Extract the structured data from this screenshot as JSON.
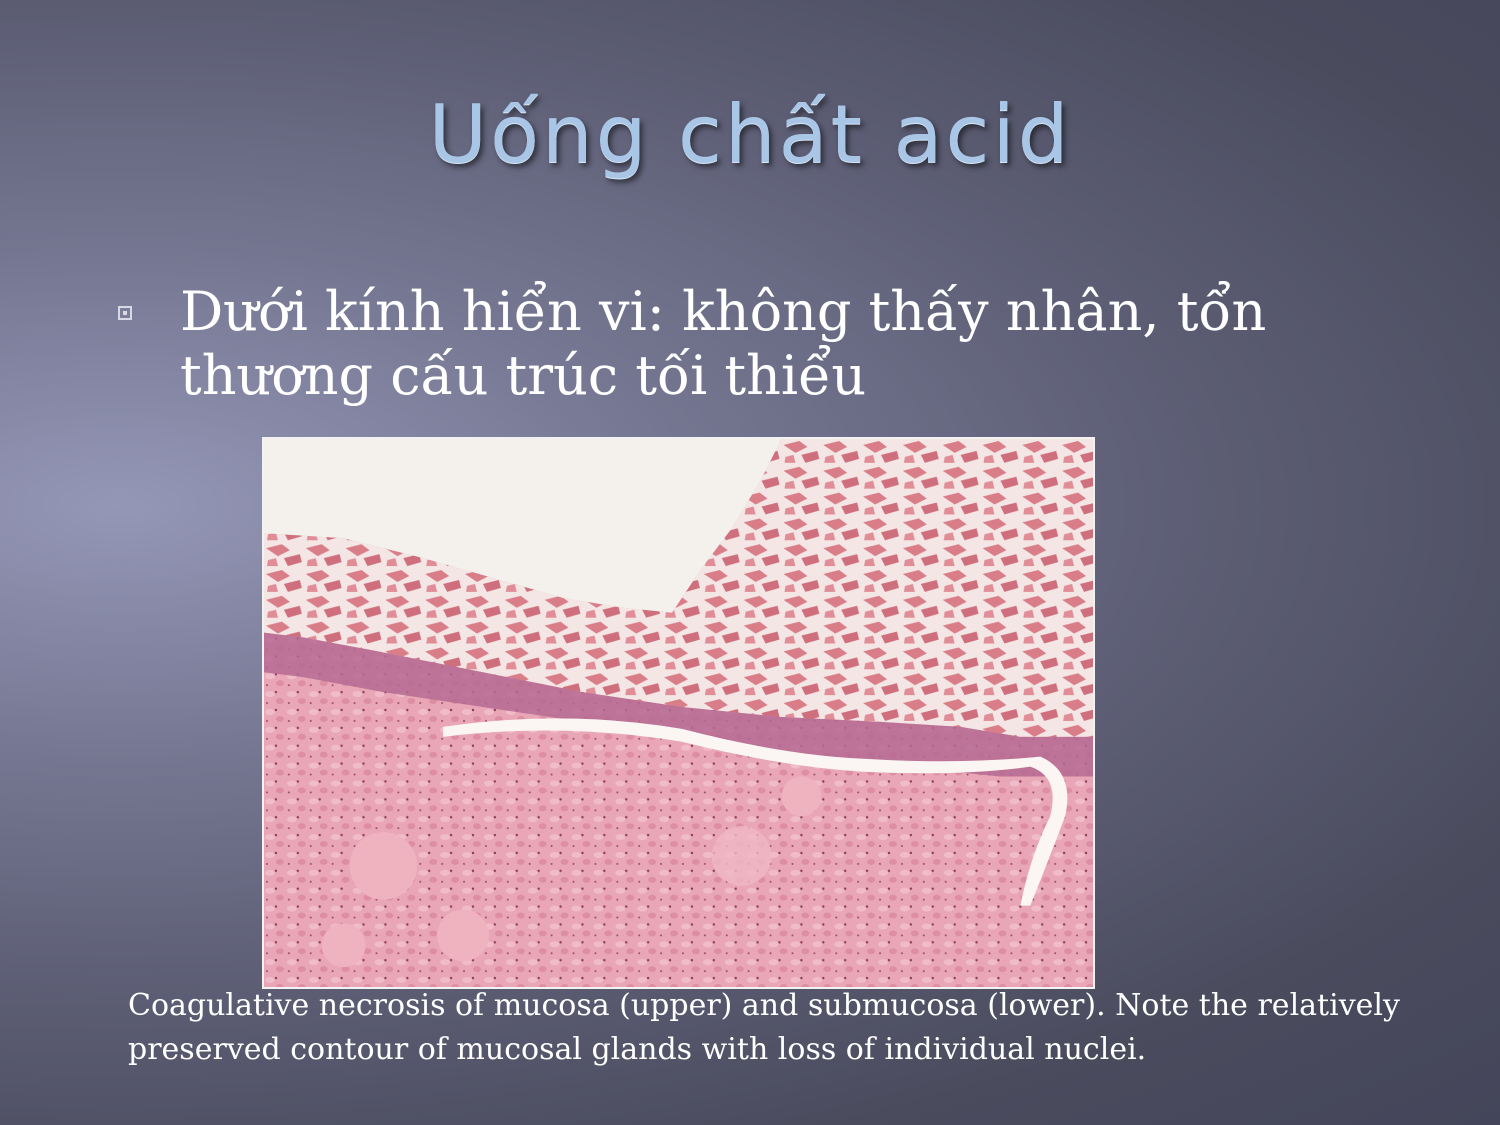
{
  "slide": {
    "title": "Uống chất acid",
    "bullet": {
      "icon": "square-bullet-icon",
      "text": "Dưới kính hiển vi: không thấy nhân, tổn thương cấu trúc tối thiểu"
    },
    "caption": "Coagulative necrosis of mucosa (upper) and submucosa (lower). Note the relatively preserved contour of mucosal glands with loss of individual nuclei."
  },
  "colors": {
    "title": "#a9c6e6",
    "text": "#ffffff",
    "background": "#5d5e75",
    "tissue": "#e59aab"
  }
}
